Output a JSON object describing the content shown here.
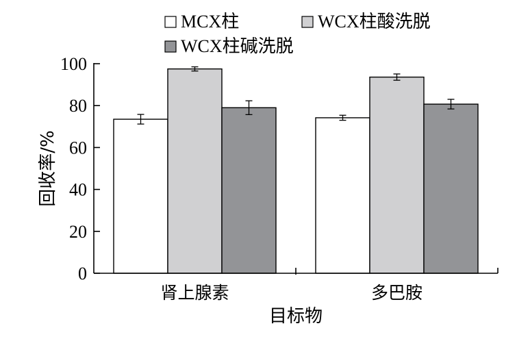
{
  "chart_data": {
    "type": "bar",
    "title": "",
    "xlabel": "目标物",
    "ylabel": "回收率/%",
    "ylim": [
      0,
      100
    ],
    "yticks": [
      0,
      20,
      40,
      60,
      80,
      100
    ],
    "categories": [
      "肾上腺素",
      "多巴胺"
    ],
    "series": [
      {
        "name": "MCX柱",
        "color": "#ffffff",
        "values": [
          73.5,
          74.2
        ],
        "errors": [
          2.3,
          1.2
        ]
      },
      {
        "name": "WCX柱酸洗脱",
        "color": "#d0d0d2",
        "values": [
          97.5,
          93.6
        ],
        "errors": [
          1.0,
          1.5
        ]
      },
      {
        "name": "WCX柱碱洗脱",
        "color": "#939497",
        "values": [
          79.0,
          80.7
        ],
        "errors": [
          3.3,
          2.3
        ]
      }
    ],
    "grid": false,
    "legend_position": "top"
  }
}
